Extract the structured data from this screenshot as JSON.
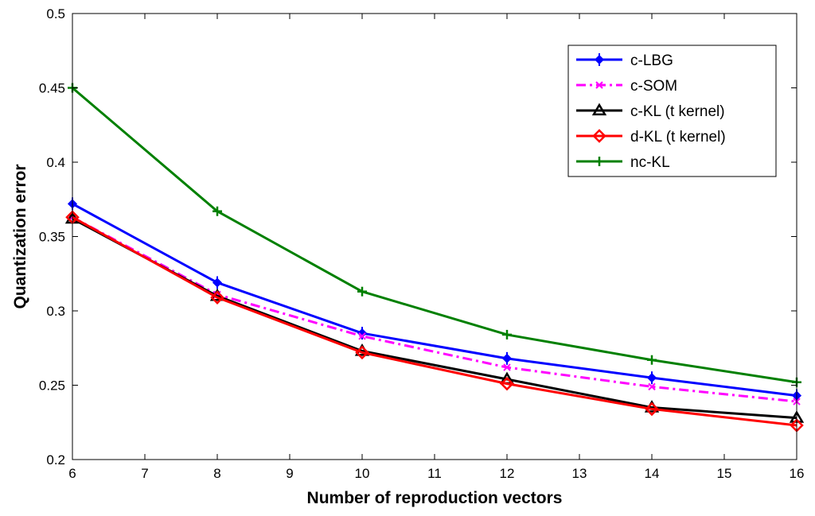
{
  "chart_data": {
    "type": "line",
    "title": "",
    "xlabel": "Number of reproduction vectors",
    "ylabel": "Quantization error",
    "xlim": [
      6,
      16
    ],
    "ylim": [
      0.2,
      0.5
    ],
    "x_ticks": [
      6,
      7,
      8,
      9,
      10,
      11,
      12,
      13,
      14,
      15,
      16
    ],
    "x_tick_labels": [
      "6",
      "7",
      "8",
      "9",
      "10",
      "11",
      "12",
      "13",
      "14",
      "15",
      "16"
    ],
    "y_ticks": [
      0.2,
      0.25,
      0.3,
      0.35,
      0.4,
      0.45,
      0.5
    ],
    "y_tick_labels": [
      "0.2",
      "0.25",
      "0.3",
      "0.35",
      "0.4",
      "0.45",
      "0.5"
    ],
    "grid": false,
    "legend_position": "top-right",
    "x": [
      6,
      8,
      10,
      12,
      14,
      16
    ],
    "series": [
      {
        "name": "c-LBG",
        "values": [
          0.372,
          0.319,
          0.285,
          0.268,
          0.255,
          0.243
        ],
        "color": "#0000ff",
        "line_style": "solid",
        "marker": "diamond-filled"
      },
      {
        "name": "c-SOM",
        "values": [
          0.363,
          0.311,
          0.283,
          0.262,
          0.249,
          0.239
        ],
        "color": "#ff00ff",
        "line_style": "dash-dot",
        "marker": "x"
      },
      {
        "name": "c-KL (t kernel)",
        "values": [
          0.362,
          0.31,
          0.273,
          0.254,
          0.235,
          0.228
        ],
        "color": "#000000",
        "line_style": "solid",
        "marker": "triangle"
      },
      {
        "name": "d-KL (t kernel)",
        "values": [
          0.363,
          0.309,
          0.272,
          0.251,
          0.234,
          0.223
        ],
        "color": "#ff0000",
        "line_style": "solid",
        "marker": "diamond-open"
      },
      {
        "name": "nc-KL",
        "values": [
          0.45,
          0.367,
          0.313,
          0.284,
          0.267,
          0.252
        ],
        "color": "#008000",
        "line_style": "solid",
        "marker": "plus"
      }
    ]
  }
}
